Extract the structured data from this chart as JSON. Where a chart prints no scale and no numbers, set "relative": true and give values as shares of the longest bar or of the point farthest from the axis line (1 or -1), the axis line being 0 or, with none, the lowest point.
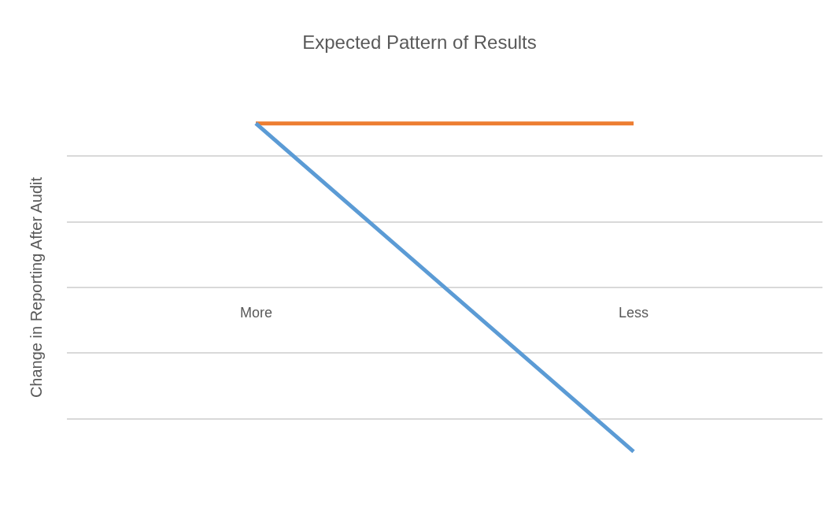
{
  "chart_data": {
    "type": "line",
    "title": "Expected Pattern of Results",
    "ylabel": "Change in Reporting After Audit",
    "categories": [
      "More",
      "Less"
    ],
    "relative": true,
    "grid": "y",
    "series": [
      {
        "color": "#ed7d31",
        "values": [
          1,
          1
        ]
      },
      {
        "color": "#5b9bd5",
        "values": [
          1,
          -1
        ]
      }
    ]
  }
}
